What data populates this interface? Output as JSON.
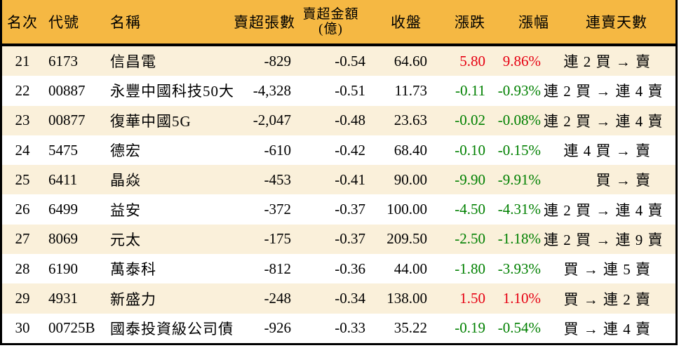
{
  "colors": {
    "header_bg": "#f5b843",
    "row_alt_bg": "#faf0da",
    "row_bg": "#ffffff",
    "up_red": "#e60012",
    "down_green": "#008000",
    "text": "#000000",
    "border": "#000000"
  },
  "chart_data": {
    "type": "table",
    "legend_position": "none",
    "columns": [
      {
        "key": "rank",
        "label": "名次"
      },
      {
        "key": "code",
        "label": "代號"
      },
      {
        "key": "name",
        "label": "名稱"
      },
      {
        "key": "sell_volume",
        "label": "賣超張數"
      },
      {
        "key": "sell_amount",
        "label": "賣超金額",
        "sublabel": "(億)"
      },
      {
        "key": "close",
        "label": "收盤"
      },
      {
        "key": "change",
        "label": "漲跌"
      },
      {
        "key": "change_pct",
        "label": "漲幅"
      },
      {
        "key": "streak",
        "label": "連賣天數"
      }
    ],
    "rows": [
      {
        "rank": "21",
        "code": "6173",
        "name": "信昌電",
        "sell_volume": "-829",
        "sell_amount": "-0.54",
        "close": "64.60",
        "change": "5.80",
        "change_pct": "9.86%",
        "streak": "連 2 買 → 賣",
        "trend": "up"
      },
      {
        "rank": "22",
        "code": "00887",
        "name": "永豐中國科技50大",
        "sell_volume": "-4,328",
        "sell_amount": "-0.51",
        "close": "11.73",
        "change": "-0.11",
        "change_pct": "-0.93%",
        "streak": "連 2 買 → 連 4 賣",
        "trend": "down"
      },
      {
        "rank": "23",
        "code": "00877",
        "name": "復華中國5G",
        "sell_volume": "-2,047",
        "sell_amount": "-0.48",
        "close": "23.63",
        "change": "-0.02",
        "change_pct": "-0.08%",
        "streak": "連 2 買 → 連 4 賣",
        "trend": "down"
      },
      {
        "rank": "24",
        "code": "5475",
        "name": "德宏",
        "sell_volume": "-610",
        "sell_amount": "-0.42",
        "close": "68.40",
        "change": "-0.10",
        "change_pct": "-0.15%",
        "streak": "連 4 買 → 賣",
        "trend": "down"
      },
      {
        "rank": "25",
        "code": "6411",
        "name": "晶焱",
        "sell_volume": "-453",
        "sell_amount": "-0.41",
        "close": "90.00",
        "change": "-9.90",
        "change_pct": "-9.91%",
        "streak": "買 → 賣",
        "trend": "down"
      },
      {
        "rank": "26",
        "code": "6499",
        "name": "益安",
        "sell_volume": "-372",
        "sell_amount": "-0.37",
        "close": "100.00",
        "change": "-4.50",
        "change_pct": "-4.31%",
        "streak": "連 2 買 → 連 4 賣",
        "trend": "down"
      },
      {
        "rank": "27",
        "code": "8069",
        "name": "元太",
        "sell_volume": "-175",
        "sell_amount": "-0.37",
        "close": "209.50",
        "change": "-2.50",
        "change_pct": "-1.18%",
        "streak": "連 2 買 → 連 9 賣",
        "trend": "down"
      },
      {
        "rank": "28",
        "code": "6190",
        "name": "萬泰科",
        "sell_volume": "-812",
        "sell_amount": "-0.36",
        "close": "44.00",
        "change": "-1.80",
        "change_pct": "-3.93%",
        "streak": "買 → 連 5 賣",
        "trend": "down"
      },
      {
        "rank": "29",
        "code": "4931",
        "name": "新盛力",
        "sell_volume": "-248",
        "sell_amount": "-0.34",
        "close": "138.00",
        "change": "1.50",
        "change_pct": "1.10%",
        "streak": "買 → 連 2 賣",
        "trend": "up"
      },
      {
        "rank": "30",
        "code": "00725B",
        "name": "國泰投資級公司債",
        "sell_volume": "-926",
        "sell_amount": "-0.33",
        "close": "35.22",
        "change": "-0.19",
        "change_pct": "-0.54%",
        "streak": "買 → 連 4 賣",
        "trend": "down"
      }
    ]
  }
}
